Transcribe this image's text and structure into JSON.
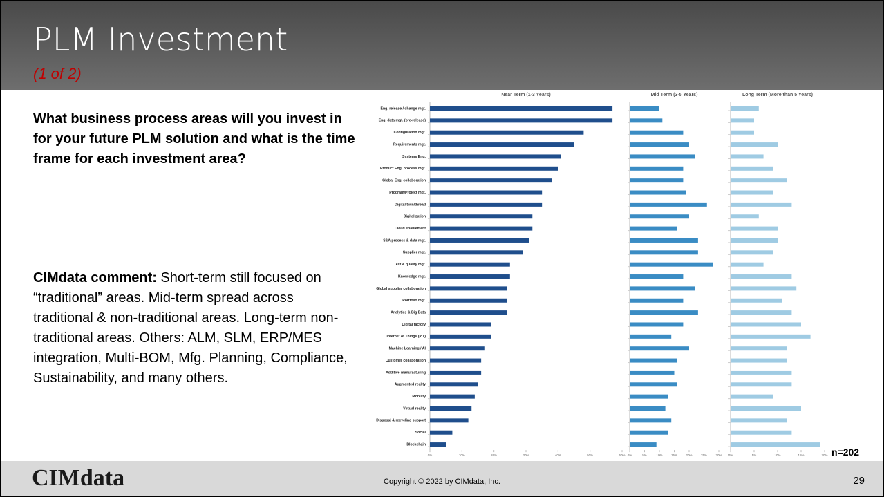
{
  "slide": {
    "title": "PLM Investment",
    "subtitle": "(1 of 2)",
    "question": "What business process areas will you invest in for your future PLM solution and what is the time frame for each investment area?",
    "comment_label": "CIMdata comment:",
    "comment": "Short-term still focused on “traditional” areas. Mid-term spread across traditional & non-traditional areas. Long-term non-traditional areas. Others: ALM, SLM, ERP/MES integration, Multi-BOM, Mfg. Planning, Compliance, Sustainability, and many others.",
    "n": "n=202",
    "logo": "CIMdata",
    "copyright": "Copyright © 2022 by CIMdata, Inc.",
    "page": "29"
  },
  "chart_data": [
    {
      "type": "hbar",
      "title": "Near Term (1-3 Years)",
      "color": "#1f4e8c",
      "categories": [
        "Eng. release / change mgt.",
        "Eng. data mgt. (pre-release)",
        "Configuration mgt.",
        "Requirements mgt.",
        "Systems Eng.",
        "Product Eng. process mgt.",
        "Global Eng. collaboration",
        "Program/Project mgt.",
        "Digital twin/thread",
        "Digitalization",
        "Cloud enablement",
        "S&A process & data mgt.",
        "Supplier mgt.",
        "Test & quality mgt.",
        "Knowledge mgt.",
        "Global supplier collaboration",
        "Portfolio mgt.",
        "Analytics & Big Data",
        "Digital factory",
        "Internet of Things (IoT)",
        "Machine Learning / AI",
        "Customer collaboration",
        "Additive manufacturing",
        "Augmented reality",
        "Mobility",
        "Virtual reality",
        "Disposal & recycling support",
        "Social",
        "Blockchain"
      ],
      "values": [
        57,
        57,
        48,
        45,
        41,
        40,
        38,
        35,
        35,
        32,
        32,
        31,
        29,
        25,
        25,
        24,
        24,
        24,
        19,
        19,
        17,
        16,
        16,
        15,
        14,
        13,
        12,
        7,
        5
      ],
      "xlim": [
        0,
        60
      ],
      "xticks": [
        {
          "value": 0,
          "label": "0%"
        },
        {
          "value": 10,
          "label": "10%"
        },
        {
          "value": 20,
          "label": "20%"
        },
        {
          "value": 30,
          "label": "30%"
        },
        {
          "value": 40,
          "label": "40%"
        },
        {
          "value": 50,
          "label": "50%"
        },
        {
          "value": 60,
          "label": "60%"
        }
      ]
    },
    {
      "type": "hbar",
      "title": "Mid Term (3-5 Years)",
      "color": "#3a8cc4",
      "values": [
        10,
        11,
        18,
        20,
        22,
        18,
        18,
        19,
        26,
        20,
        16,
        23,
        23,
        28,
        18,
        22,
        18,
        23,
        18,
        14,
        20,
        16,
        15,
        16,
        13,
        12,
        14,
        13,
        9
      ],
      "xlim": [
        0,
        30
      ],
      "xticks": [
        {
          "value": 0,
          "label": "0%"
        },
        {
          "value": 5,
          "label": "5%"
        },
        {
          "value": 10,
          "label": "10%"
        },
        {
          "value": 15,
          "label": "15%"
        },
        {
          "value": 20,
          "label": "20%"
        },
        {
          "value": 25,
          "label": "25%"
        },
        {
          "value": 30,
          "label": "30%"
        }
      ]
    },
    {
      "type": "hbar",
      "title": "Long Term (More than 5 Years)",
      "color": "#9fcbe3",
      "values": [
        6,
        5,
        5,
        10,
        7,
        9,
        12,
        9,
        13,
        6,
        10,
        10,
        9,
        7,
        13,
        14,
        11,
        13,
        15,
        17,
        12,
        12,
        13,
        13,
        9,
        15,
        12,
        13,
        19
      ],
      "xlim": [
        0,
        20
      ],
      "xticks": [
        {
          "value": 0,
          "label": "0%"
        },
        {
          "value": 5,
          "label": "5%"
        },
        {
          "value": 10,
          "label": "10%"
        },
        {
          "value": 15,
          "label": "15%"
        },
        {
          "value": 20,
          "label": "20%"
        }
      ]
    }
  ]
}
